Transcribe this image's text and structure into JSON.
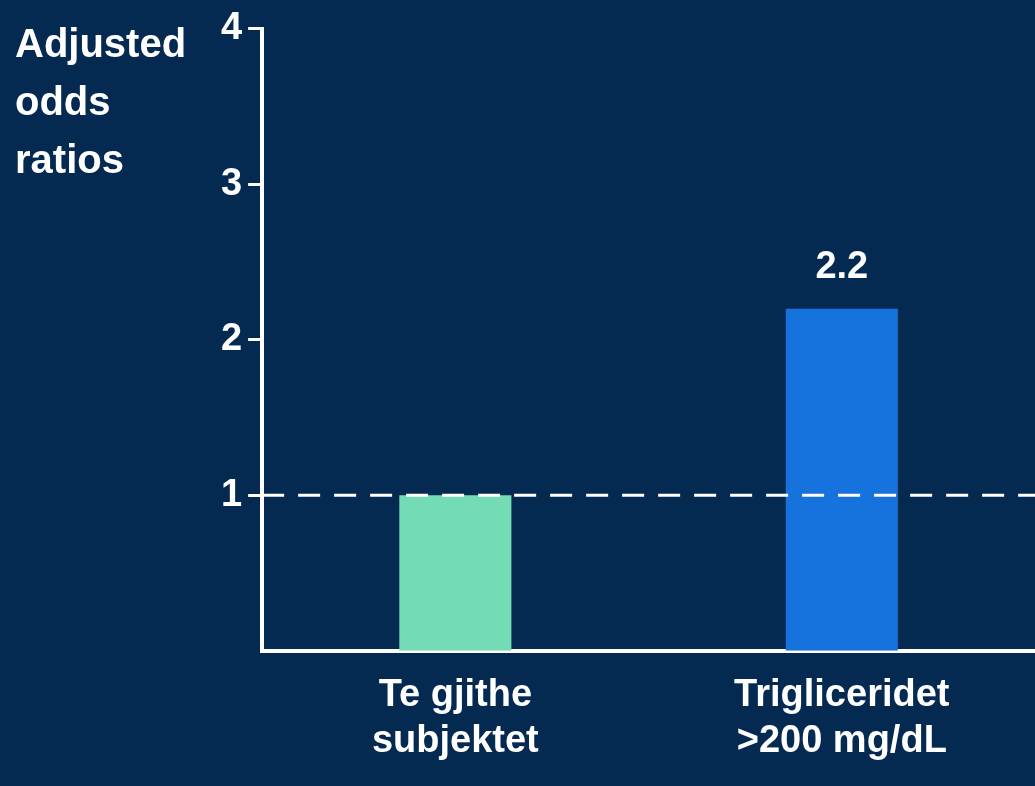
{
  "chart_data": {
    "type": "bar",
    "ylabel": "Adjusted odds ratios",
    "categories": [
      "Te gjithe subjektet",
      "Trigliceridet >200 mg/dL"
    ],
    "values": [
      1.0,
      2.2
    ],
    "colors": [
      "#74dcb4",
      "#1672dc"
    ],
    "value_labels": [
      null,
      "2.2"
    ],
    "ylim": [
      0,
      4
    ],
    "yticks": [
      1,
      2,
      3,
      4
    ],
    "grid": false,
    "legend": false,
    "ref_lines": [
      {
        "axis": "y",
        "value": 1,
        "color": "#ffffff",
        "line_style": "dashed"
      }
    ]
  }
}
